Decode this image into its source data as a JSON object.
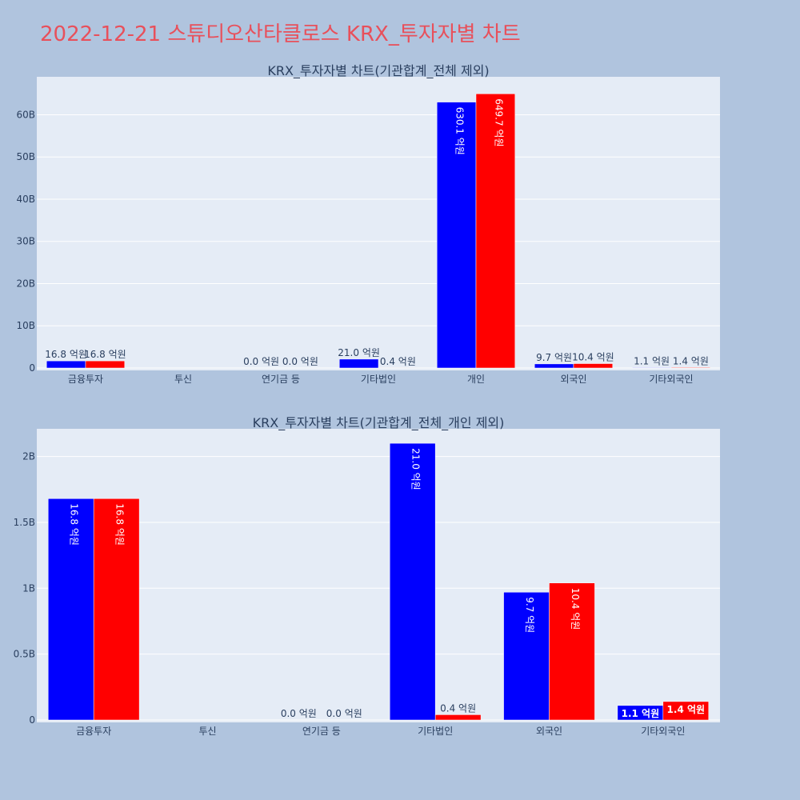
{
  "title": "2022-12-21 스튜디오산타클로스 KRX_투자자별 차트",
  "colors": {
    "background": "#b0c4de",
    "plot_bg": "#e5ecf6",
    "title": "#e8505b",
    "series_a": "#0000ff",
    "series_b": "#ff0000"
  },
  "chart_data": [
    {
      "type": "bar",
      "title": "KRX_투자자별 차트(기관합계_전체 제외)",
      "categories": [
        "금융투자",
        "투신",
        "연기금 등",
        "기타법인",
        "개인",
        "외국인",
        "기타외국인"
      ],
      "series": [
        {
          "color": "#0000ff",
          "values": [
            1680000000,
            0,
            0,
            2100000000,
            63010000000,
            970000000,
            110000000
          ],
          "labels": [
            "16.8 억원",
            "",
            "0.0 억원",
            "21.0 억원",
            "630.1 억원",
            "9.7 억원",
            "1.1 억원"
          ]
        },
        {
          "color": "#ff0000",
          "values": [
            1680000000,
            0,
            0,
            40000000,
            64970000000,
            1040000000,
            140000000
          ],
          "labels": [
            "16.8 억원",
            "",
            "0.0 억원",
            "0.4 억원",
            "649.7 억원",
            "10.4 억원",
            "1.4 억원"
          ]
        }
      ],
      "yticks": [
        0,
        10000000000,
        20000000000,
        30000000000,
        40000000000,
        50000000000,
        60000000000
      ],
      "ytick_labels": [
        "0",
        "10B",
        "20B",
        "30B",
        "40B",
        "50B",
        "60B"
      ],
      "ylim": [
        0,
        69000000000
      ],
      "grid": true
    },
    {
      "type": "bar",
      "title": "KRX_투자자별 차트(기관합계_전체_개인 제외)",
      "categories": [
        "금융투자",
        "투신",
        "연기금 등",
        "기타법인",
        "외국인",
        "기타외국인"
      ],
      "series": [
        {
          "color": "#0000ff",
          "values": [
            1680000000,
            0,
            0,
            2100000000,
            970000000,
            110000000
          ],
          "labels": [
            "16.8 억원",
            "",
            "0.0 억원",
            "21.0 억원",
            "9.7 억원",
            "1.1 억원"
          ]
        },
        {
          "color": "#ff0000",
          "values": [
            1680000000,
            0,
            0,
            40000000,
            1040000000,
            140000000
          ],
          "labels": [
            "16.8 억원",
            "",
            "0.0 억원",
            "0.4 억원",
            "10.4 억원",
            "1.4 억원"
          ]
        }
      ],
      "yticks": [
        0,
        500000000,
        1000000000,
        1500000000,
        2000000000
      ],
      "ytick_labels": [
        "0",
        "0.5B",
        "1B",
        "1.5B",
        "2B"
      ],
      "ylim": [
        0,
        2210000000
      ],
      "grid": true
    }
  ]
}
